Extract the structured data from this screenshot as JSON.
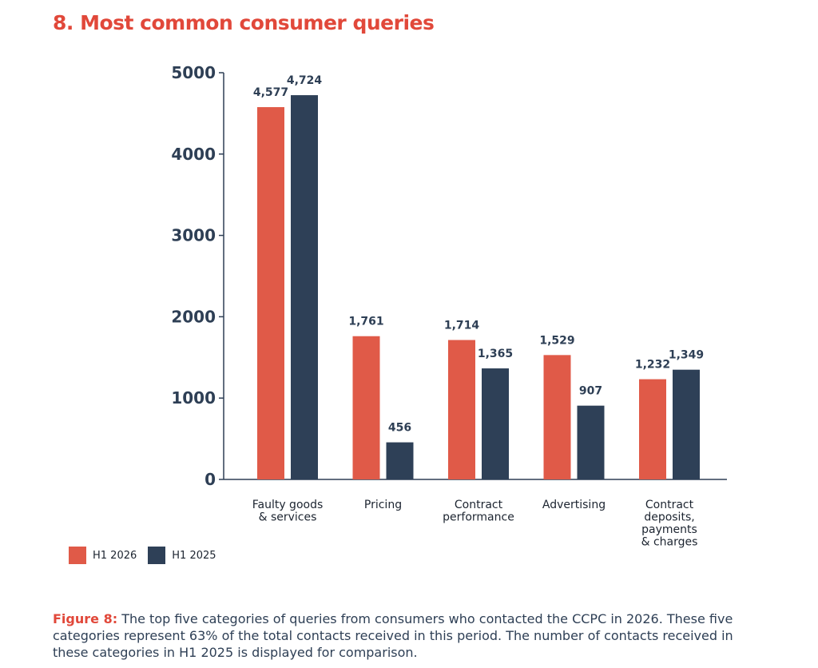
{
  "title": "8. Most common consumer queries",
  "caption": {
    "label": "Figure 8:",
    "text": " The top five categories of queries from consumers who contacted the CCPC in 2026. These five categories represent 63% of the total contacts received in this period. The number of contacts received in these categories in H1 2025 is displayed for comparison."
  },
  "colors": {
    "accent": "#e1483a",
    "h1_2026": "#e05a48",
    "h1_2025": "#2e4057",
    "axis": "#2e3f55"
  },
  "chart_data": {
    "type": "bar",
    "title": "8. Most common consumer queries",
    "xlabel": "",
    "ylabel": "",
    "ylim": [
      0,
      5000
    ],
    "yticks": [
      0,
      1000,
      2000,
      3000,
      4000,
      5000
    ],
    "yticklabels": [
      "0",
      "1000",
      "2000",
      "3000",
      "4000",
      "5000"
    ],
    "grid": false,
    "legend_position": "bottom-left",
    "categories": [
      [
        "Faulty goods",
        "& services"
      ],
      [
        "Pricing"
      ],
      [
        "Contract",
        "performance"
      ],
      [
        "Advertising"
      ],
      [
        "Contract",
        "deposits,",
        "payments",
        "& charges"
      ]
    ],
    "series": [
      {
        "name": "H1 2026",
        "color": "#e05a48",
        "values": [
          4577,
          1761,
          1714,
          1529,
          1232
        ],
        "labels": [
          "4,577",
          "1,761",
          "1,714",
          "1,529",
          "1,232"
        ]
      },
      {
        "name": "H1 2025",
        "color": "#2e4057",
        "values": [
          4724,
          456,
          1365,
          907,
          1349
        ],
        "labels": [
          "4,724",
          "456",
          "1,365",
          "907",
          "1,349"
        ]
      }
    ]
  }
}
